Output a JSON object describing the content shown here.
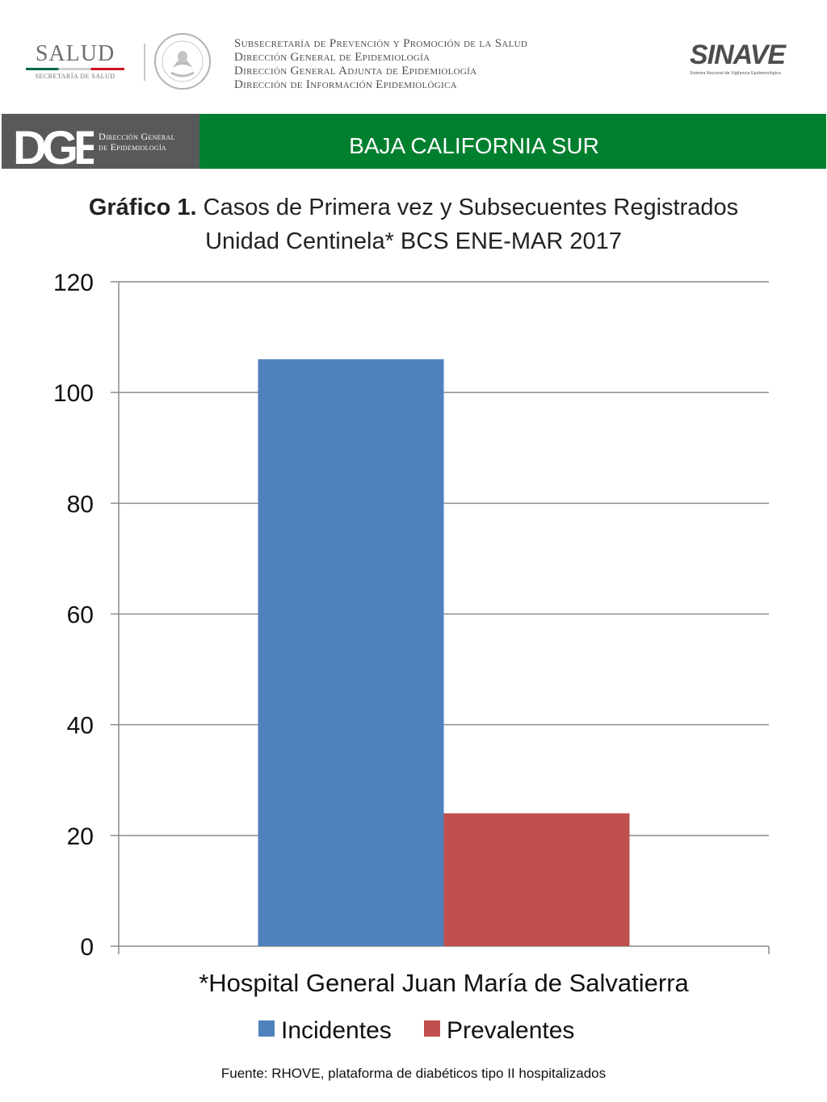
{
  "header": {
    "salud_logo": {
      "word": "SALUD",
      "subtitle": "SECRETARÍA DE SALUD"
    },
    "subsecretaria_lines": [
      "Subsecretaría de Prevención y Promoción de la Salud",
      "Dirección General de Epidemiología",
      "Dirección General Adjunta de Epidemiología",
      "Dirección de Información Epidemiológica"
    ],
    "sinave_logo": {
      "word": "SINAVE",
      "subtitle": "Sistema Nacional de Vigilancia Epidemiológica"
    }
  },
  "banner": {
    "dge_mark": "DGE",
    "dge_text_line1": "Dirección General",
    "dge_text_line2": "de Epidemiología",
    "state": "BAJA CALIFORNIA SUR"
  },
  "chart_title": {
    "bold_part": "Gráfico 1.",
    "line1_rest": " Casos de Primera vez y Subsecuentes Registrados",
    "line2": "Unidad Centinela* BCS ENE-MAR 2017"
  },
  "chart_data": {
    "type": "bar",
    "categories": [
      "*Hospital General Juan María de Salvatierra"
    ],
    "series": [
      {
        "name": "Incidentes",
        "values": [
          106
        ],
        "color": "#4f81bd"
      },
      {
        "name": "Prevalentes",
        "values": [
          24
        ],
        "color": "#c0504d"
      }
    ],
    "ylim": [
      0,
      120
    ],
    "yticks": [
      0,
      20,
      40,
      60,
      80,
      100,
      120
    ],
    "grid": true,
    "legend": "bottom"
  },
  "source_note": "Fuente: RHOVE, plataforma de diabéticos tipo II hospitalizados"
}
